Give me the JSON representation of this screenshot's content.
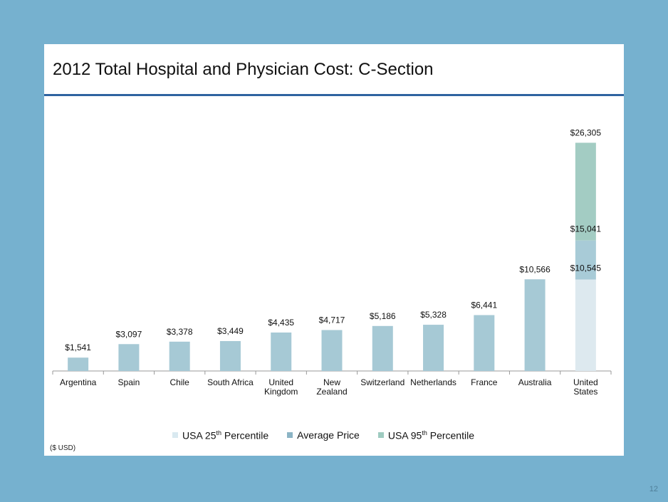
{
  "slide": {
    "title": "2012 Total Hospital and Physician Cost: C-Section",
    "unit_note": "($ USD)",
    "page_number": "12"
  },
  "legend": {
    "p25_label": "USA 25",
    "p25_sup": "th",
    "p25_suffix": " Percentile",
    "avg_label": "Average Price",
    "p95_label": "USA  95",
    "p95_sup": "th",
    "p95_suffix": " Percentile"
  },
  "colors": {
    "bar": "#a6c9d5",
    "usa_p25": "#dde9ef",
    "usa_avg": "#a8cbd7",
    "usa_p95": "#a3ccc3",
    "axis": "#999999",
    "background": "#76b1cf",
    "title_rule": "#2f63a0"
  },
  "chart_data": {
    "type": "bar",
    "categories": [
      "Argentina",
      "Spain",
      "Chile",
      "South Africa",
      "United Kingdom",
      "New Zealand",
      "Switzerland",
      "Netherlands",
      "France",
      "Australia",
      "United States"
    ],
    "category_lines": [
      [
        "Argentina"
      ],
      [
        "Spain"
      ],
      [
        "Chile"
      ],
      [
        "South Africa"
      ],
      [
        "United",
        "Kingdom"
      ],
      [
        "New",
        "Zealand"
      ],
      [
        "Switzerland"
      ],
      [
        "Netherlands"
      ],
      [
        "France"
      ],
      [
        "Australia"
      ],
      [
        "United",
        "States"
      ]
    ],
    "values": [
      1541,
      3097,
      3378,
      3449,
      4435,
      4717,
      5186,
      5328,
      6441,
      10566,
      15041
    ],
    "value_labels": [
      "$1,541",
      "$3,097",
      "$3,378",
      "$3,449",
      "$4,435",
      "$4,717",
      "$5,186",
      "$5,328",
      "$6,441",
      "$10,566",
      "$15,041"
    ],
    "usa_breakdown": {
      "p25": 10545,
      "average": 15041,
      "p95": 26305,
      "labels": {
        "p25": "$10,545",
        "average": "$15,041",
        "p95": "$26,305"
      }
    },
    "ylim": [
      0,
      27000
    ],
    "grid": false,
    "legend_position": "bottom"
  }
}
